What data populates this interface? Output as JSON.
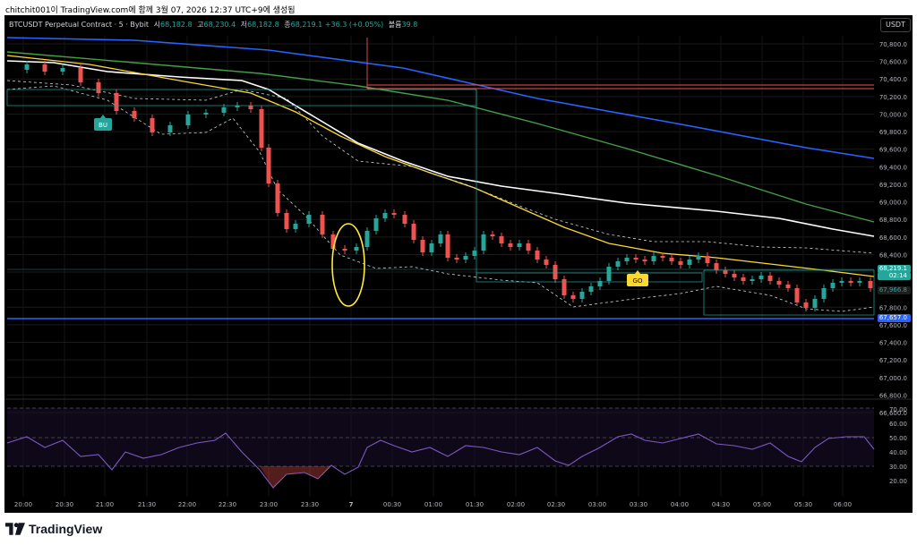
{
  "caption": "chitchit001이 TradingView.com에 함께 3월 07, 2026 12:37 UTC+9에 생성됨",
  "header": {
    "symbol": "BTCUSDT Perpetual Contract · 5 · Bybit",
    "open_label": "시",
    "open": "68,182.8",
    "high_label": "고",
    "high": "68,230.4",
    "low_label": "저",
    "low": "68,182.8",
    "close_label": "종",
    "close": "68,219.1",
    "change": "+36.3 (+0.05%)",
    "volume_label": "볼륨",
    "volume": "39.8"
  },
  "currency_button": "USDT",
  "price_axis": {
    "ticks": [
      "70,800.0",
      "70,600.0",
      "70,400.0",
      "70,200.0",
      "70,000.0",
      "69,800.0",
      "69,600.0",
      "69,400.0",
      "69,200.0",
      "69,000.0",
      "68,800.0",
      "68,600.0",
      "68,400.0",
      "68,200.0",
      "68,000.0",
      "67,800.0",
      "67,600.0",
      "67,400.0",
      "67,200.0",
      "67,000.0",
      "66,800.0",
      "66,600.0"
    ],
    "last_price_label": "68,219.1",
    "countdown": "02:14",
    "band_label": "67,966.8",
    "support_label": "67,657.0"
  },
  "rsi_axis": {
    "ticks": [
      "70.00",
      "60.00",
      "50.00",
      "40.00",
      "30.00",
      "20.00"
    ]
  },
  "time_axis": {
    "ticks": [
      "20:00",
      "20:30",
      "21:00",
      "21:30",
      "22:00",
      "22:30",
      "23:00",
      "23:30",
      "7",
      "00:30",
      "01:00",
      "01:30",
      "02:00",
      "02:30",
      "03:00",
      "03:30",
      "04:00",
      "04:30",
      "05:00",
      "05:30",
      "06:00"
    ]
  },
  "signals": {
    "buy": "BU",
    "go": "GO"
  },
  "colors": {
    "up": "#26a69a",
    "down": "#ef5350",
    "ema_blue": "#2962ff",
    "ema_green": "#43a047",
    "ema_white": "#ffffff",
    "ema_yellow": "#fdd835",
    "support": "#2962ff",
    "rsi": "#7e57c2"
  },
  "footer": {
    "brand": "TradingView"
  }
}
